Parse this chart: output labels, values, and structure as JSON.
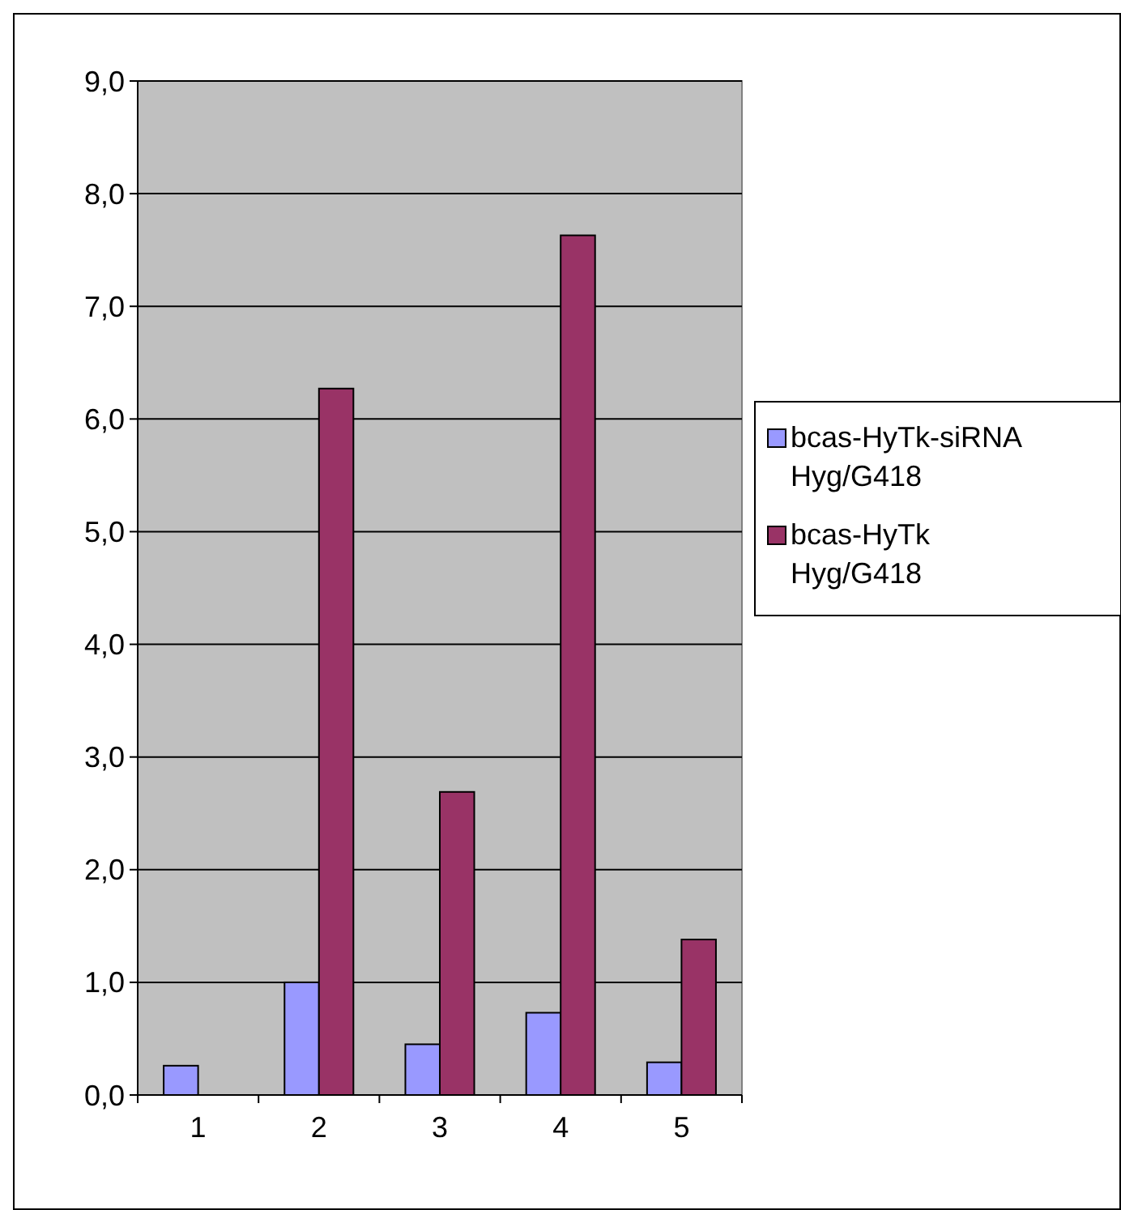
{
  "chart_data": {
    "type": "bar",
    "categories": [
      "1",
      "2",
      "3",
      "4",
      "5"
    ],
    "series": [
      {
        "name": "bcas-HyTk-siRNA Hyg/G418",
        "color": "#9999ff",
        "values": [
          0.26,
          1.0,
          0.45,
          0.73,
          0.29
        ]
      },
      {
        "name": "bcas-HyTk Hyg/G418",
        "color": "#993366",
        "values": [
          null,
          6.27,
          2.69,
          7.63,
          1.38
        ]
      }
    ],
    "ylim": [
      0,
      9
    ],
    "yticks": [
      {
        "value": 0,
        "label": "0,0"
      },
      {
        "value": 1,
        "label": "1,0"
      },
      {
        "value": 2,
        "label": "2,0"
      },
      {
        "value": 3,
        "label": "3,0"
      },
      {
        "value": 4,
        "label": "4,0"
      },
      {
        "value": 5,
        "label": "5,0"
      },
      {
        "value": 6,
        "label": "6,0"
      },
      {
        "value": 7,
        "label": "7,0"
      },
      {
        "value": 8,
        "label": "8,0"
      },
      {
        "value": 9,
        "label": "9,0"
      }
    ],
    "grid": "y",
    "legend": "right"
  }
}
